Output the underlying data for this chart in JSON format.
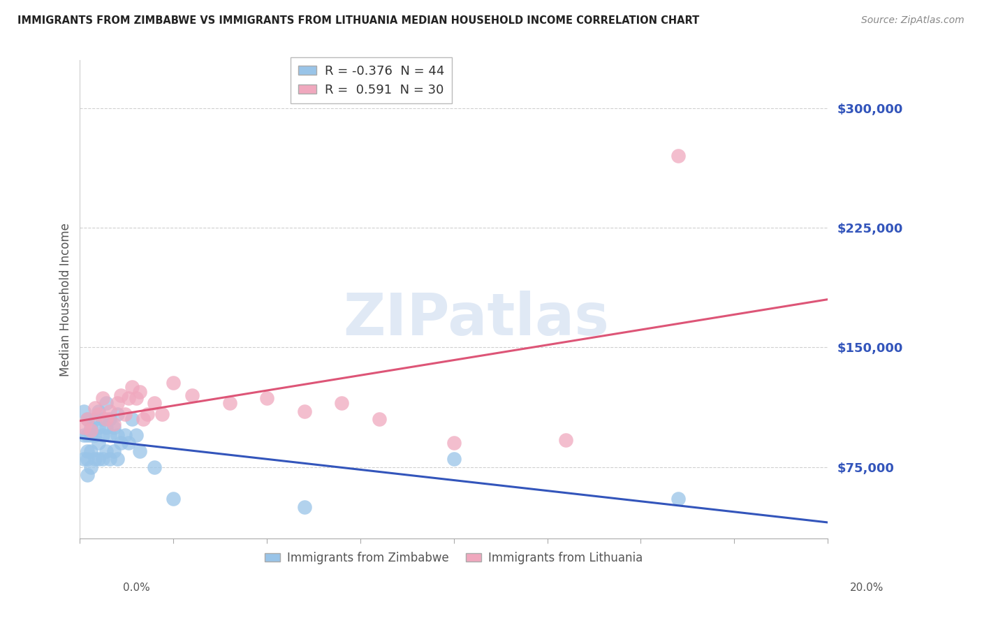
{
  "title": "IMMIGRANTS FROM ZIMBABWE VS IMMIGRANTS FROM LITHUANIA MEDIAN HOUSEHOLD INCOME CORRELATION CHART",
  "source": "Source: ZipAtlas.com",
  "ylabel": "Median Household Income",
  "yticks": [
    75000,
    150000,
    225000,
    300000
  ],
  "ytick_labels": [
    "$75,000",
    "$150,000",
    "$225,000",
    "$300,000"
  ],
  "xlim": [
    0.0,
    0.2
  ],
  "ylim": [
    30000,
    330000
  ],
  "legend_r_entries": [
    "R = -0.376  N = 44",
    "R =  0.591  N = 30"
  ],
  "legend_series": [
    "Immigrants from Zimbabwe",
    "Immigrants from Lithuania"
  ],
  "watermark": "ZIPatlas",
  "background_color": "#ffffff",
  "grid_color": "#d0d0d0",
  "title_color": "#333333",
  "blue_color": "#99c4e8",
  "pink_color": "#f0a8be",
  "blue_line_color": "#3355bb",
  "pink_line_color": "#dd5577",
  "zimbabwe_x": [
    0.001,
    0.001,
    0.001,
    0.002,
    0.002,
    0.002,
    0.002,
    0.002,
    0.003,
    0.003,
    0.003,
    0.003,
    0.004,
    0.004,
    0.004,
    0.005,
    0.005,
    0.005,
    0.005,
    0.006,
    0.006,
    0.006,
    0.007,
    0.007,
    0.007,
    0.008,
    0.008,
    0.008,
    0.009,
    0.009,
    0.01,
    0.01,
    0.01,
    0.011,
    0.012,
    0.013,
    0.014,
    0.015,
    0.016,
    0.02,
    0.025,
    0.06,
    0.1,
    0.16
  ],
  "zimbabwe_y": [
    110000,
    95000,
    80000,
    105000,
    95000,
    85000,
    80000,
    70000,
    100000,
    95000,
    85000,
    75000,
    105000,
    95000,
    80000,
    110000,
    100000,
    90000,
    80000,
    105000,
    95000,
    80000,
    115000,
    100000,
    85000,
    105000,
    95000,
    80000,
    100000,
    85000,
    108000,
    95000,
    80000,
    90000,
    95000,
    90000,
    105000,
    95000,
    85000,
    75000,
    55000,
    50000,
    80000,
    55000
  ],
  "lithuania_x": [
    0.001,
    0.002,
    0.003,
    0.004,
    0.005,
    0.006,
    0.007,
    0.008,
    0.009,
    0.01,
    0.011,
    0.012,
    0.013,
    0.014,
    0.015,
    0.016,
    0.017,
    0.018,
    0.02,
    0.022,
    0.025,
    0.03,
    0.04,
    0.05,
    0.06,
    0.07,
    0.08,
    0.1,
    0.13,
    0.16
  ],
  "lithuania_y": [
    100000,
    105000,
    98000,
    112000,
    108000,
    118000,
    105000,
    110000,
    102000,
    115000,
    120000,
    108000,
    118000,
    125000,
    118000,
    122000,
    105000,
    108000,
    115000,
    108000,
    128000,
    120000,
    115000,
    118000,
    110000,
    115000,
    105000,
    90000,
    92000,
    270000
  ]
}
